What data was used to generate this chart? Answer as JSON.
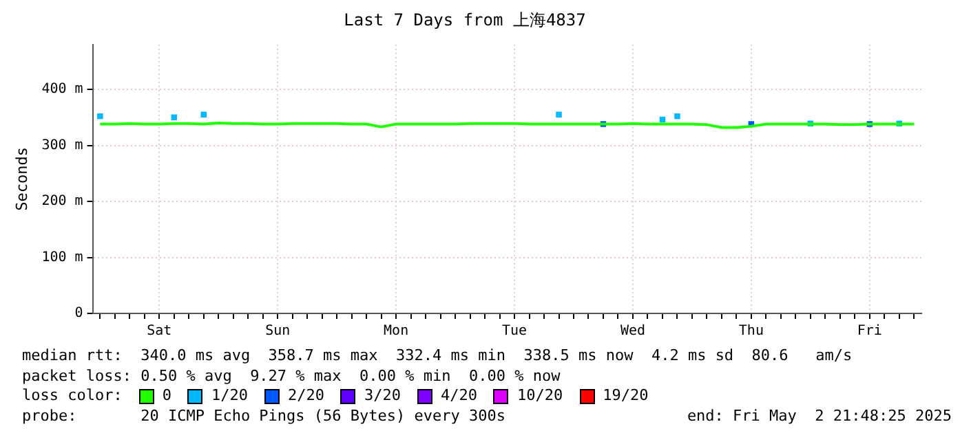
{
  "chart_data": {
    "type": "line",
    "title": "Last 7 Days from 上海4837",
    "ylabel": "Seconds",
    "categories": [
      null,
      null,
      null,
      null,
      "Sat",
      null,
      null,
      null,
      null,
      null,
      null,
      null,
      "Sun",
      null,
      null,
      null,
      null,
      null,
      null,
      null,
      "Mon",
      null,
      null,
      null,
      null,
      null,
      null,
      null,
      "Tue",
      null,
      null,
      null,
      null,
      null,
      null,
      null,
      "Wed",
      null,
      null,
      null,
      null,
      null,
      null,
      null,
      "Thu",
      null,
      null,
      null,
      null,
      null,
      null,
      null,
      "Fri",
      null,
      null,
      null
    ],
    "ylim": [
      0,
      480
    ],
    "yticks": [
      0,
      {
        "value": 100,
        "label": "100 m"
      },
      {
        "value": 200,
        "label": "200 m"
      },
      {
        "value": 300,
        "label": "300 m"
      },
      {
        "value": 400,
        "label": "400 m"
      }
    ],
    "grid": true,
    "legend": "bottom",
    "legend_title": "loss color:",
    "marker": "none",
    "line_style": "solid",
    "series": [
      {
        "name": "0",
        "color": "#20ff00",
        "values": [
          338,
          338,
          339,
          338,
          338,
          339,
          339,
          338,
          340,
          339,
          339,
          338,
          338,
          339,
          339,
          339,
          339,
          338,
          338,
          333,
          338,
          338,
          338,
          338,
          338,
          339,
          339,
          339,
          339,
          338,
          338,
          338,
          338,
          338,
          338,
          338,
          339,
          338,
          338,
          338,
          338,
          337,
          332,
          332,
          334,
          338,
          338,
          338,
          338,
          338,
          337,
          337,
          338,
          338,
          338,
          338
        ]
      },
      {
        "name": "1/20",
        "color": "#00b8ff",
        "type": "scatter",
        "marker": "square",
        "values": [
          352,
          null,
          null,
          null,
          null,
          350,
          null,
          355,
          null,
          null,
          null,
          null,
          null,
          null,
          null,
          null,
          null,
          null,
          null,
          null,
          null,
          null,
          null,
          null,
          null,
          null,
          null,
          null,
          null,
          null,
          null,
          355,
          null,
          null,
          null,
          null,
          null,
          null,
          346,
          352,
          null,
          null,
          null,
          null,
          null,
          null,
          null,
          null,
          339,
          null,
          null,
          null,
          null,
          null,
          339,
          null
        ]
      },
      {
        "name": "2/20",
        "color": "#0059ff",
        "type": "scatter",
        "marker": "square",
        "values": [
          null,
          null,
          null,
          null,
          null,
          null,
          null,
          null,
          null,
          null,
          null,
          null,
          null,
          null,
          null,
          null,
          null,
          null,
          null,
          null,
          null,
          null,
          null,
          null,
          null,
          null,
          null,
          null,
          null,
          null,
          null,
          null,
          null,
          null,
          338,
          null,
          null,
          null,
          null,
          null,
          null,
          null,
          null,
          null,
          338,
          null,
          null,
          null,
          null,
          null,
          null,
          null,
          338,
          null,
          null,
          null
        ]
      },
      {
        "name": "3/20",
        "color": "#5e00ff",
        "type": "scatter",
        "marker": "square",
        "values": [
          null,
          null,
          null,
          null,
          null,
          null,
          null,
          null,
          null,
          null,
          null,
          null,
          null,
          null,
          null,
          null,
          null,
          null,
          null,
          null,
          null,
          null,
          null,
          null,
          null,
          null,
          null,
          null,
          null,
          null,
          null,
          null,
          null,
          null,
          null,
          null,
          null,
          null,
          null,
          null,
          null,
          null,
          null,
          null,
          null,
          null,
          null,
          null,
          null,
          null,
          null,
          null,
          null,
          null,
          null,
          null
        ]
      },
      {
        "name": "4/20",
        "color": "#7e00ff",
        "type": "scatter",
        "marker": "square",
        "values": [
          null,
          null,
          null,
          null,
          null,
          null,
          null,
          null,
          null,
          null,
          null,
          null,
          null,
          null,
          null,
          null,
          null,
          null,
          null,
          null,
          null,
          null,
          null,
          null,
          null,
          null,
          null,
          null,
          null,
          null,
          null,
          null,
          null,
          null,
          null,
          null,
          null,
          null,
          null,
          null,
          null,
          null,
          null,
          null,
          null,
          null,
          null,
          null,
          null,
          null,
          null,
          null,
          null,
          null,
          null,
          null
        ]
      },
      {
        "name": "10/20",
        "color": "#dd00ff",
        "type": "scatter",
        "marker": "square",
        "values": [
          null,
          null,
          null,
          null,
          null,
          null,
          null,
          null,
          null,
          null,
          null,
          null,
          null,
          null,
          null,
          null,
          null,
          null,
          null,
          null,
          null,
          null,
          null,
          null,
          null,
          null,
          null,
          null,
          null,
          null,
          null,
          null,
          null,
          null,
          null,
          null,
          null,
          null,
          null,
          null,
          null,
          null,
          null,
          null,
          null,
          null,
          null,
          null,
          null,
          null,
          null,
          null,
          null,
          null,
          null,
          null
        ]
      },
      {
        "name": "19/20",
        "color": "#ff0000",
        "type": "scatter",
        "marker": "square",
        "values": [
          null,
          null,
          null,
          null,
          null,
          null,
          null,
          null,
          null,
          null,
          null,
          null,
          null,
          null,
          null,
          null,
          null,
          null,
          null,
          null,
          null,
          null,
          null,
          null,
          null,
          null,
          null,
          null,
          null,
          null,
          null,
          null,
          null,
          null,
          null,
          null,
          null,
          null,
          null,
          null,
          null,
          null,
          null,
          null,
          null,
          null,
          null,
          null,
          null,
          null,
          null,
          null,
          null,
          null,
          null,
          null
        ]
      }
    ],
    "annotations": [
      "median rtt:  340.0 ms avg  358.7 ms max  332.4 ms min  338.5 ms now  4.2 ms sd  80.6   am/s",
      "packet loss: 0.50 % avg  9.27 % max  0.00 % min  0.00 % now",
      "probe:       20 ICMP Echo Pings (56 Bytes) every 300s",
      "end: Fri May  2 21:48:25 2025"
    ]
  }
}
